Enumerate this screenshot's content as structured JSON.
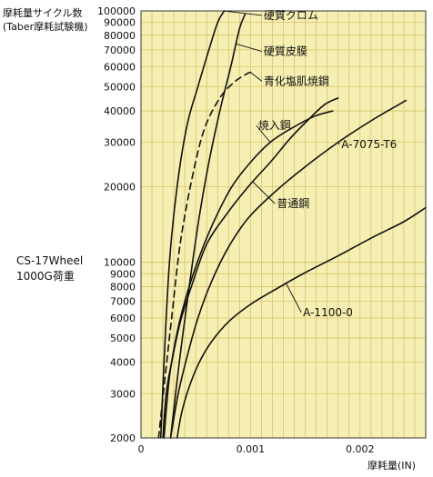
{
  "chart_data": {
    "type": "line",
    "ylabel_lines": [
      "摩耗量サイクル数",
      "(Taber摩耗試験機)"
    ],
    "side_label_lines": [
      "CS-17Wheel",
      "1000G荷重"
    ],
    "xlabel": "摩耗量(IN)",
    "y_scale": "log",
    "xlim": [
      0,
      0.0026
    ],
    "ylim": [
      2000,
      100000
    ],
    "grid": true,
    "plot_background": "#f5efb3",
    "grid_color": "#d8c56a",
    "y_ticks": [
      {
        "value": 2000,
        "label": "2000"
      },
      {
        "value": 3000,
        "label": "3000"
      },
      {
        "value": 4000,
        "label": "4000"
      },
      {
        "value": 5000,
        "label": "5000"
      },
      {
        "value": 6000,
        "label": "6000"
      },
      {
        "value": 7000,
        "label": "7000"
      },
      {
        "value": 8000,
        "label": "8000"
      },
      {
        "value": 9000,
        "label": "9000"
      },
      {
        "value": 10000,
        "label": "10000"
      },
      {
        "value": 20000,
        "label": "20000"
      },
      {
        "value": 30000,
        "label": "30000"
      },
      {
        "value": 40000,
        "label": "40000"
      },
      {
        "value": 50000,
        "label": "50000"
      },
      {
        "value": 60000,
        "label": "60000"
      },
      {
        "value": 70000,
        "label": "70000"
      },
      {
        "value": 80000,
        "label": "80000"
      },
      {
        "value": 90000,
        "label": "90000"
      },
      {
        "value": 100000,
        "label": "100000"
      }
    ],
    "x_ticks": [
      {
        "value": 0,
        "label": "0"
      },
      {
        "value": 0.001,
        "label": "0.001"
      },
      {
        "value": 0.002,
        "label": "0.002"
      }
    ],
    "series": [
      {
        "name": "硬質クロム",
        "dashed": false,
        "x": [
          0.00018,
          0.00021,
          0.00026,
          0.00033,
          0.00042,
          0.00052,
          0.00062,
          0.0007,
          0.00076
        ],
        "y": [
          2000,
          4000,
          10000,
          20000,
          35000,
          50000,
          70000,
          90000,
          100000
        ],
        "label_at": {
          "x": 0.00112,
          "y": 96000
        }
      },
      {
        "name": "硬質皮膜",
        "dashed": false,
        "x": [
          0.00027,
          0.00035,
          0.00044,
          0.00053,
          0.00062,
          0.00072,
          0.00082,
          0.0009,
          0.00095
        ],
        "y": [
          2000,
          4000,
          8000,
          15000,
          25000,
          40000,
          60000,
          85000,
          97000
        ],
        "label_at": {
          "x": 0.00112,
          "y": 69000
        }
      },
      {
        "name": "青化塩肌焼鋼",
        "dashed": true,
        "x": [
          0.00016,
          0.00022,
          0.00028,
          0.00036,
          0.00047,
          0.00058,
          0.00072,
          0.00085,
          0.00096,
          0.001
        ],
        "y": [
          2000,
          3500,
          6000,
          12000,
          22000,
          34000,
          45000,
          52000,
          56000,
          57000
        ],
        "label_at": {
          "x": 0.00112,
          "y": 52500
        }
      },
      {
        "name": "焼入鋼",
        "dashed": false,
        "x": [
          0.00021,
          0.00026,
          0.00034,
          0.00044,
          0.00055,
          0.00068,
          0.00083,
          0.001,
          0.00118,
          0.00137,
          0.00158,
          0.00175
        ],
        "y": [
          2000,
          3500,
          5500,
          8000,
          11000,
          15000,
          20000,
          25000,
          30000,
          34000,
          38000,
          40000
        ],
        "label_at": {
          "x": 0.00107,
          "y": 35000
        }
      },
      {
        "name": "A-7075-T6",
        "dashed": false,
        "x": [
          0.00027,
          0.00034,
          0.00042,
          0.00052,
          0.00065,
          0.0008,
          0.00098,
          0.00122,
          0.0015,
          0.0018,
          0.00212,
          0.00242
        ],
        "y": [
          2000,
          3000,
          4200,
          6000,
          8500,
          11500,
          15000,
          19000,
          24000,
          30000,
          37000,
          44000
        ],
        "label_at": {
          "x": 0.00183,
          "y": 29400
        }
      },
      {
        "name": "普通鋼",
        "dashed": false,
        "x": [
          0.0002,
          0.00023,
          0.00028,
          0.00036,
          0.00046,
          0.0006,
          0.00078,
          0.00098,
          0.00118,
          0.00136,
          0.00153,
          0.00168,
          0.0018
        ],
        "y": [
          2000,
          3000,
          4000,
          5800,
          8000,
          11800,
          15500,
          20000,
          25000,
          31000,
          37000,
          42500,
          45000
        ],
        "label_at": {
          "x": 0.00124,
          "y": 17100
        }
      },
      {
        "name": "A-1100-0",
        "dashed": false,
        "x": [
          0.00033,
          0.00037,
          0.00043,
          0.00052,
          0.00064,
          0.0008,
          0.001,
          0.00125,
          0.0015,
          0.0018,
          0.00212,
          0.0024,
          0.0026
        ],
        "y": [
          2000,
          2500,
          3100,
          3900,
          4800,
          5800,
          6800,
          7900,
          9100,
          10600,
          12600,
          14500,
          16500
        ],
        "label_at": {
          "x": 0.00148,
          "y": 6320
        }
      }
    ]
  }
}
